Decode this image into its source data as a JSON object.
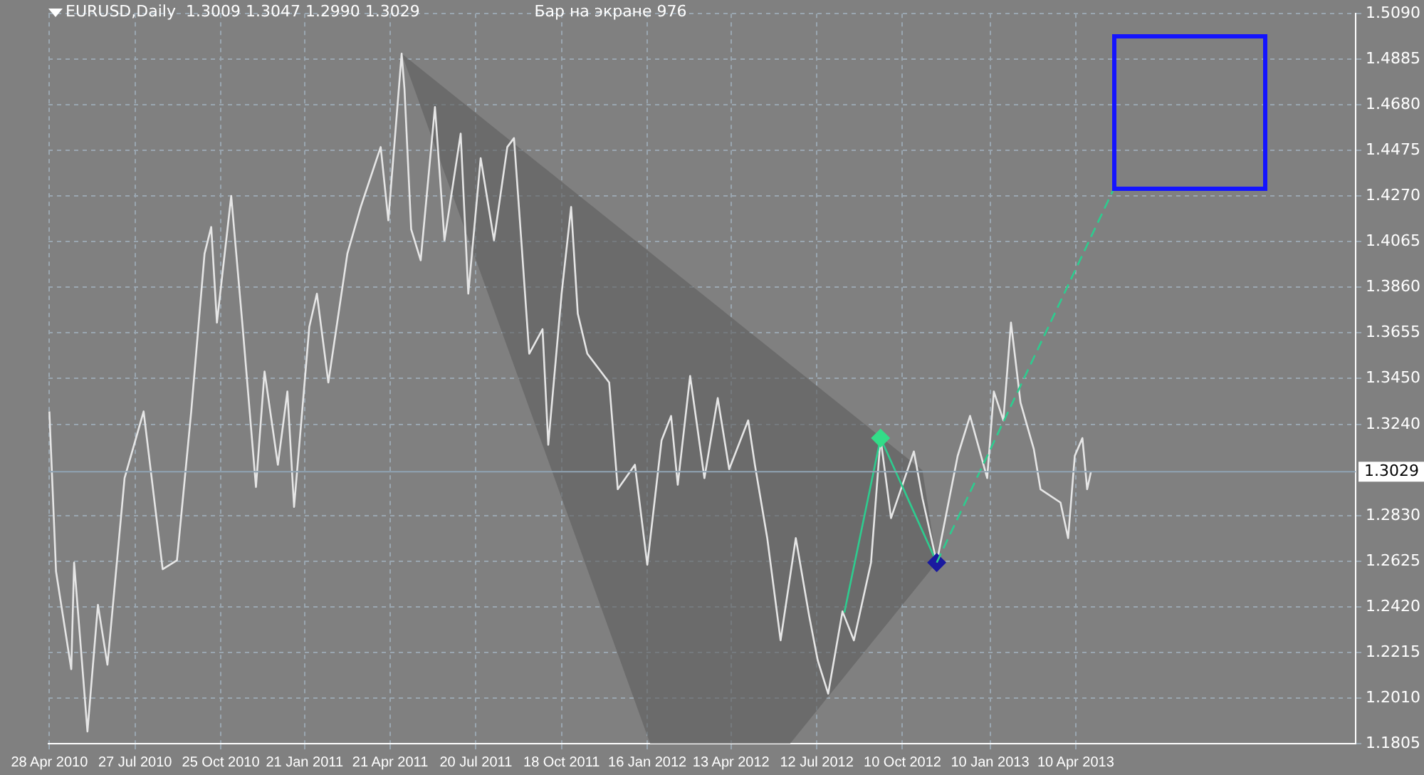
{
  "chart_data": {
    "type": "line",
    "title": "EURUSD,Daily  1.3009 1.3047 1.2990 1.3029",
    "annotations": [
      "Бар на экране 976"
    ],
    "grid": true,
    "legend": false,
    "xlim": [
      "2010-04-27",
      "2014-01-29"
    ],
    "xticks": [
      {
        "value": "2010-04-28",
        "label": "28 Apr 2010"
      },
      {
        "value": "2010-07-27",
        "label": "27 Jul 2010"
      },
      {
        "value": "2010-10-25",
        "label": "25 Oct 2010"
      },
      {
        "value": "2011-01-21",
        "label": "21 Jan 2011"
      },
      {
        "value": "2011-04-21",
        "label": "21 Apr 2011"
      },
      {
        "value": "2011-07-20",
        "label": "20 Jul 2011"
      },
      {
        "value": "2011-10-18",
        "label": "18 Oct 2011"
      },
      {
        "value": "2012-01-16",
        "label": "16 Jan 2012"
      },
      {
        "value": "2012-04-13",
        "label": "13 Apr 2012"
      },
      {
        "value": "2012-07-12",
        "label": "12 Jul 2012"
      },
      {
        "value": "2012-10-10",
        "label": "10 Oct 2012"
      },
      {
        "value": "2013-01-10",
        "label": "10 Jan 2013"
      },
      {
        "value": "2013-04-10",
        "label": "10 Apr 2013"
      }
    ],
    "ylim": [
      1.1805,
      1.509
    ],
    "yticks": [
      {
        "value": 1.1805,
        "label": "1.1805"
      },
      {
        "value": 1.201,
        "label": "1.2010"
      },
      {
        "value": 1.2215,
        "label": "1.2215"
      },
      {
        "value": 1.242,
        "label": "1.2420"
      },
      {
        "value": 1.2625,
        "label": "1.2625"
      },
      {
        "value": 1.283,
        "label": "1.2830"
      },
      {
        "value": 1.324,
        "label": "1.3240"
      },
      {
        "value": 1.345,
        "label": "1.3450"
      },
      {
        "value": 1.3655,
        "label": "1.3655"
      },
      {
        "value": 1.386,
        "label": "1.3860"
      },
      {
        "value": 1.4065,
        "label": "1.4065"
      },
      {
        "value": 1.427,
        "label": "1.4270"
      },
      {
        "value": 1.4475,
        "label": "1.4475"
      },
      {
        "value": 1.468,
        "label": "1.4680"
      },
      {
        "value": 1.4885,
        "label": "1.4885"
      },
      {
        "value": 1.509,
        "label": "1.5090"
      }
    ],
    "ref_lines": [
      {
        "axis": "y",
        "value": 1.3029,
        "label": "1.3029",
        "color": "#8fa3b3"
      }
    ],
    "series": [
      {
        "type": "area",
        "color": "#5e5e5e",
        "x": [
          "2011-05-03",
          "2012-01-19",
          "2012-06-14",
          "2012-11-15",
          "2012-10-31",
          "2011-05-03"
        ],
        "values": [
          1.491,
          1.1805,
          1.1805,
          1.262,
          1.3035,
          1.491
        ]
      },
      {
        "type": "line",
        "color": "#e6e6e6",
        "x": [
          "2010-04-28",
          "2010-05-05",
          "2010-05-21",
          "2010-05-24",
          "2010-06-07",
          "2010-06-18",
          "2010-06-28",
          "2010-07-16",
          "2010-08-05",
          "2010-08-25",
          "2010-09-09",
          "2010-09-24",
          "2010-10-08",
          "2010-10-15",
          "2010-10-21",
          "2010-11-05",
          "2010-11-17",
          "2010-12-01",
          "2010-12-10",
          "2010-12-24",
          "2011-01-03",
          "2011-01-10",
          "2011-01-26",
          "2011-02-03",
          "2011-02-15",
          "2011-03-07",
          "2011-03-21",
          "2011-04-11",
          "2011-04-19",
          "2011-05-03",
          "2011-05-06",
          "2011-05-13",
          "2011-05-23",
          "2011-06-07",
          "2011-06-17",
          "2011-07-04",
          "2011-07-12",
          "2011-07-25",
          "2011-08-08",
          "2011-08-22",
          "2011-08-29",
          "2011-09-06",
          "2011-09-14",
          "2011-09-28",
          "2011-10-04",
          "2011-10-18",
          "2011-10-28",
          "2011-11-04",
          "2011-11-14",
          "2011-12-07",
          "2011-12-16",
          "2012-01-03",
          "2012-01-16",
          "2012-01-31",
          "2012-02-10",
          "2012-02-17",
          "2012-03-01",
          "2012-03-16",
          "2012-03-30",
          "2012-04-11",
          "2012-05-01",
          "2012-05-08",
          "2012-05-21",
          "2012-06-04",
          "2012-06-20",
          "2012-07-04",
          "2012-07-13",
          "2012-07-24",
          "2012-08-08",
          "2012-08-20",
          "2012-09-07",
          "2012-09-17",
          "2012-09-28",
          "2012-10-22",
          "2012-10-31",
          "2012-11-15",
          "2012-12-07",
          "2012-12-20",
          "2013-01-07",
          "2013-01-14",
          "2013-01-24",
          "2013-02-01",
          "2013-02-11",
          "2013-02-25",
          "2013-03-04",
          "2013-03-25",
          "2013-04-02",
          "2013-04-09",
          "2013-04-17",
          "2013-04-22",
          "2013-04-26"
        ],
        "values": [
          1.33,
          1.258,
          1.214,
          1.262,
          1.186,
          1.243,
          1.216,
          1.3,
          1.33,
          1.259,
          1.263,
          1.33,
          1.401,
          1.413,
          1.37,
          1.427,
          1.368,
          1.296,
          1.348,
          1.306,
          1.339,
          1.287,
          1.368,
          1.383,
          1.343,
          1.401,
          1.422,
          1.449,
          1.416,
          1.491,
          1.475,
          1.412,
          1.398,
          1.467,
          1.407,
          1.455,
          1.383,
          1.444,
          1.407,
          1.449,
          1.453,
          1.405,
          1.356,
          1.367,
          1.315,
          1.383,
          1.422,
          1.374,
          1.356,
          1.343,
          1.295,
          1.306,
          1.261,
          1.317,
          1.328,
          1.297,
          1.346,
          1.3,
          1.336,
          1.304,
          1.326,
          1.306,
          1.273,
          1.227,
          1.273,
          1.238,
          1.218,
          1.203,
          1.24,
          1.227,
          1.262,
          1.318,
          1.282,
          1.312,
          1.291,
          1.262,
          1.31,
          1.328,
          1.3,
          1.339,
          1.326,
          1.37,
          1.334,
          1.313,
          1.295,
          1.289,
          1.273,
          1.31,
          1.318,
          1.295,
          1.3029
        ]
      },
      {
        "type": "line",
        "color": "#2ecc8f",
        "x": [
          "2012-08-10",
          "2012-09-17",
          "2012-11-15"
        ],
        "values": [
          1.2395,
          1.318,
          1.262
        ]
      },
      {
        "type": "scatter",
        "marker": "diamond",
        "colors": [
          "#33dd88",
          "#1a1aa0"
        ],
        "x": [
          "2012-09-17",
          "2012-11-15"
        ],
        "values": [
          1.318,
          1.262
        ]
      },
      {
        "type": "line",
        "line_style": "dashed",
        "color": "#2ecc8f",
        "x": [
          "2012-11-15",
          "2013-05-19"
        ],
        "values": [
          1.262,
          1.4293
        ]
      }
    ]
  }
}
